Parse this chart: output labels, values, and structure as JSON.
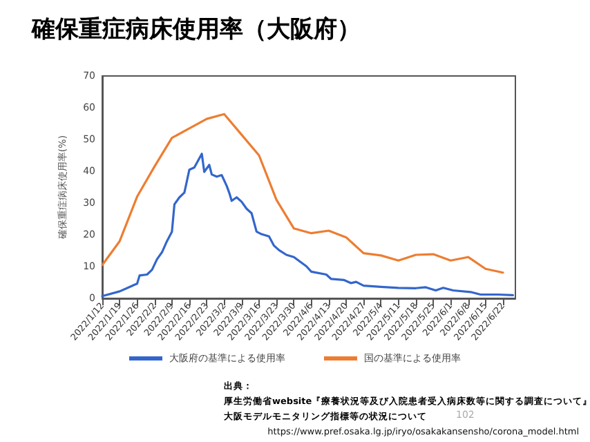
{
  "chart_data": {
    "type": "line",
    "title": "確保重症病床使用率（大阪府）",
    "ylabel": "確保重症病床使用率(%)",
    "ylim": [
      0,
      70
    ],
    "yticks": [
      0,
      10,
      20,
      30,
      40,
      50,
      60,
      70
    ],
    "grid": false,
    "legend": "bottom",
    "marker": "none",
    "xlim": [
      "2022-01-12",
      "2022-06-27"
    ],
    "xticks": [
      {
        "value": "2022-01-12",
        "label": "2022/1/12"
      },
      {
        "value": "2022-01-19",
        "label": "2022/1/19"
      },
      {
        "value": "2022-01-26",
        "label": "2022/1/26"
      },
      {
        "value": "2022-02-02",
        "label": "2022/2/2"
      },
      {
        "value": "2022-02-09",
        "label": "2022/2/9"
      },
      {
        "value": "2022-02-16",
        "label": "2022/2/16"
      },
      {
        "value": "2022-02-23",
        "label": "2022/2/23"
      },
      {
        "value": "2022-03-02",
        "label": "2022/3/2"
      },
      {
        "value": "2022-03-09",
        "label": "2022/3/9"
      },
      {
        "value": "2022-03-16",
        "label": "2022/3/16"
      },
      {
        "value": "2022-03-23",
        "label": "2022/3/23"
      },
      {
        "value": "2022-03-30",
        "label": "2022/3/30"
      },
      {
        "value": "2022-04-06",
        "label": "2022/4/6"
      },
      {
        "value": "2022-04-13",
        "label": "2022/4/13"
      },
      {
        "value": "2022-04-20",
        "label": "2022/4/20"
      },
      {
        "value": "2022-04-27",
        "label": "2022/4/27"
      },
      {
        "value": "2022-05-04",
        "label": "2022/5/4"
      },
      {
        "value": "2022-05-11",
        "label": "2022/5/11"
      },
      {
        "value": "2022-05-18",
        "label": "2022/5/18"
      },
      {
        "value": "2022-05-25",
        "label": "2022/5/25"
      },
      {
        "value": "2022-06-01",
        "label": "2022/6/1"
      },
      {
        "value": "2022-06-08",
        "label": "2022/6/8"
      },
      {
        "value": "2022-06-15",
        "label": "2022/6/15"
      },
      {
        "value": "2022-06-22",
        "label": "2022/6/22"
      }
    ],
    "series": [
      {
        "name": "大阪府の基準による使用率",
        "color": "#3366cc",
        "x": [
          "2022-01-12",
          "2022-01-19",
          "2022-01-23",
          "2022-01-25",
          "2022-01-26",
          "2022-01-27",
          "2022-01-30",
          "2022-02-01",
          "2022-02-03",
          "2022-02-05",
          "2022-02-07",
          "2022-02-09",
          "2022-02-10",
          "2022-02-12",
          "2022-02-14",
          "2022-02-16",
          "2022-02-18",
          "2022-02-21",
          "2022-02-22",
          "2022-02-24",
          "2022-02-25",
          "2022-02-27",
          "2022-03-01",
          "2022-03-03",
          "2022-03-04",
          "2022-03-05",
          "2022-03-07",
          "2022-03-09",
          "2022-03-11",
          "2022-03-13",
          "2022-03-15",
          "2022-03-17",
          "2022-03-20",
          "2022-03-22",
          "2022-03-24",
          "2022-03-27",
          "2022-03-30",
          "2022-04-04",
          "2022-04-06",
          "2022-04-12",
          "2022-04-14",
          "2022-04-19",
          "2022-04-22",
          "2022-04-24",
          "2022-04-27",
          "2022-05-04",
          "2022-05-11",
          "2022-05-18",
          "2022-05-22",
          "2022-05-26",
          "2022-05-29",
          "2022-06-02",
          "2022-06-09",
          "2022-06-13",
          "2022-06-20",
          "2022-06-26"
        ],
        "values": [
          0.7,
          2.2,
          3.6,
          4.3,
          4.6,
          7.2,
          7.5,
          9,
          12.3,
          14.5,
          18,
          21,
          29.6,
          31.8,
          33.3,
          40.5,
          41.2,
          45.5,
          39.8,
          42,
          39,
          38.3,
          38.8,
          35.4,
          33.3,
          30.7,
          31.8,
          30.4,
          28.2,
          26.8,
          21,
          20.2,
          19.5,
          16.6,
          15.2,
          13.7,
          13,
          10.1,
          8.4,
          7.5,
          6.1,
          5.8,
          4.8,
          5.2,
          4,
          3.6,
          3.3,
          3.2,
          3.5,
          2.5,
          3.3,
          2.5,
          2,
          1.2,
          1.2,
          1
        ]
      },
      {
        "name": "国の基準による使用率",
        "color": "#ed7d31",
        "x": [
          "2022-01-12",
          "2022-01-19",
          "2022-01-26",
          "2022-02-02",
          "2022-02-09",
          "2022-02-16",
          "2022-02-23",
          "2022-03-02",
          "2022-03-09",
          "2022-03-16",
          "2022-03-23",
          "2022-03-30",
          "2022-04-06",
          "2022-04-13",
          "2022-04-20",
          "2022-04-27",
          "2022-05-04",
          "2022-05-11",
          "2022-05-18",
          "2022-05-25",
          "2022-06-01",
          "2022-06-08",
          "2022-06-15",
          "2022-06-22"
        ],
        "values": [
          10.5,
          18,
          32,
          41.5,
          50.5,
          53.5,
          56.5,
          58,
          51.5,
          45,
          31,
          22,
          20.5,
          21.3,
          19.2,
          14.2,
          13.5,
          11.9,
          13.7,
          13.9,
          11.9,
          13,
          9.3,
          8.1
        ]
      }
    ],
    "annotations": [
      "出典：",
      "厚生労働省website『療養状況等及び入院患者受入病床数等に関する調査について』",
      "大阪モデルモニタリング指標等の状況について",
      "https://www.pref.osaka.lg.jp/iryo/osakakansensho/corona_model.html",
      "102"
    ]
  }
}
